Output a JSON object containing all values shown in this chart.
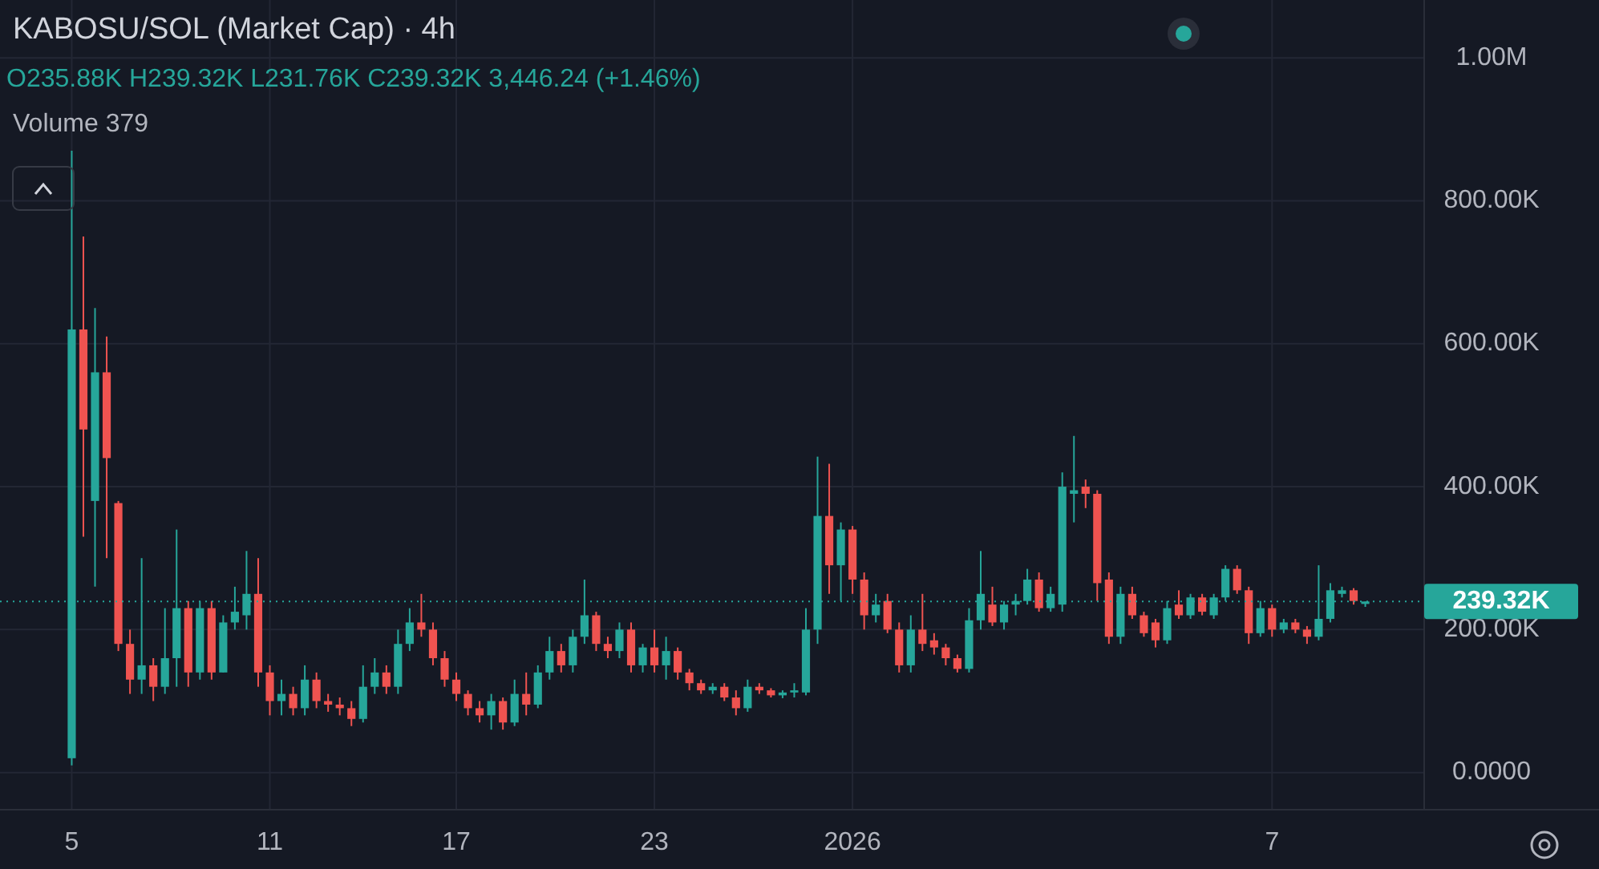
{
  "chart_data": {
    "type": "candlestick",
    "title": "KABOSU/SOL (Market Cap) · 4h",
    "annotations": [
      "O235.88K H239.32K L231.76K C239.32K 3,446.24 (+1.46%)",
      "Volume 379"
    ],
    "categories": [
      "5",
      null,
      null,
      null,
      null,
      null,
      null,
      null,
      null,
      null,
      null,
      null,
      null,
      null,
      null,
      null,
      null,
      "11",
      null,
      null,
      null,
      null,
      null,
      null,
      null,
      null,
      null,
      null,
      null,
      null,
      null,
      null,
      null,
      "17",
      null,
      null,
      null,
      null,
      null,
      null,
      null,
      null,
      null,
      null,
      null,
      null,
      null,
      null,
      null,
      null,
      "23",
      null,
      null,
      null,
      null,
      null,
      null,
      null,
      null,
      null,
      null,
      null,
      null,
      null,
      null,
      null,
      null,
      "2026",
      null,
      null,
      null,
      null,
      null,
      null,
      null,
      null,
      null,
      null,
      null,
      null,
      null,
      null,
      null,
      null,
      null,
      null,
      null,
      null,
      null,
      null,
      null,
      null,
      null,
      null,
      null,
      null,
      null,
      null,
      null,
      null,
      null,
      null,
      null,
      "7",
      null,
      null,
      null,
      null,
      null,
      null,
      null,
      null
    ],
    "ohlc": [
      [
        20000,
        870000,
        10000,
        620000
      ],
      [
        620000,
        750000,
        330000,
        480000
      ],
      [
        380000,
        650000,
        260000,
        560000
      ],
      [
        560000,
        610000,
        300000,
        440000
      ],
      [
        377000,
        380000,
        170000,
        180000
      ],
      [
        180000,
        200000,
        110000,
        130000
      ],
      [
        130000,
        300000,
        110000,
        150000
      ],
      [
        150000,
        160000,
        100000,
        120000
      ],
      [
        120000,
        230000,
        110000,
        160000
      ],
      [
        160000,
        340000,
        120000,
        230000
      ],
      [
        230000,
        240000,
        120000,
        140000
      ],
      [
        140000,
        240000,
        130000,
        230000
      ],
      [
        230000,
        240000,
        130000,
        140000
      ],
      [
        140000,
        220000,
        140000,
        210000
      ],
      [
        210000,
        260000,
        200000,
        225000
      ],
      [
        220000,
        310000,
        200000,
        250000
      ],
      [
        250000,
        300000,
        120000,
        140000
      ],
      [
        140000,
        150000,
        80000,
        100000
      ],
      [
        100000,
        130000,
        80000,
        110000
      ],
      [
        110000,
        120000,
        80000,
        90000
      ],
      [
        90000,
        150000,
        80000,
        130000
      ],
      [
        130000,
        140000,
        90000,
        100000
      ],
      [
        100000,
        110000,
        85000,
        95000
      ],
      [
        95000,
        105000,
        80000,
        90000
      ],
      [
        90000,
        100000,
        65000,
        75000
      ],
      [
        75000,
        150000,
        70000,
        120000
      ],
      [
        120000,
        160000,
        110000,
        140000
      ],
      [
        140000,
        150000,
        110000,
        120000
      ],
      [
        120000,
        200000,
        110000,
        180000
      ],
      [
        180000,
        230000,
        170000,
        210000
      ],
      [
        210000,
        250000,
        190000,
        200000
      ],
      [
        200000,
        210000,
        150000,
        160000
      ],
      [
        160000,
        170000,
        120000,
        130000
      ],
      [
        130000,
        140000,
        100000,
        110000
      ],
      [
        110000,
        115000,
        80000,
        90000
      ],
      [
        90000,
        100000,
        70000,
        80000
      ],
      [
        80000,
        110000,
        60000,
        100000
      ],
      [
        100000,
        105000,
        60000,
        70000
      ],
      [
        70000,
        130000,
        65000,
        110000
      ],
      [
        110000,
        140000,
        80000,
        95000
      ],
      [
        95000,
        150000,
        90000,
        140000
      ],
      [
        140000,
        190000,
        130000,
        170000
      ],
      [
        170000,
        180000,
        140000,
        150000
      ],
      [
        150000,
        200000,
        140000,
        190000
      ],
      [
        190000,
        270000,
        180000,
        220000
      ],
      [
        220000,
        225000,
        170000,
        180000
      ],
      [
        180000,
        190000,
        160000,
        170000
      ],
      [
        170000,
        210000,
        160000,
        200000
      ],
      [
        200000,
        210000,
        140000,
        150000
      ],
      [
        150000,
        180000,
        140000,
        175000
      ],
      [
        175000,
        200000,
        140000,
        150000
      ],
      [
        150000,
        190000,
        130000,
        170000
      ],
      [
        170000,
        175000,
        130000,
        140000
      ],
      [
        140000,
        145000,
        115000,
        125000
      ],
      [
        125000,
        130000,
        110000,
        115000
      ],
      [
        115000,
        125000,
        110000,
        120000
      ],
      [
        120000,
        125000,
        100000,
        105000
      ],
      [
        105000,
        115000,
        80000,
        90000
      ],
      [
        90000,
        130000,
        85000,
        120000
      ],
      [
        120000,
        125000,
        110000,
        115000
      ],
      [
        115000,
        118000,
        105000,
        108000
      ],
      [
        108000,
        115000,
        104000,
        112000
      ],
      [
        112000,
        125000,
        105000,
        115000
      ],
      [
        112000,
        230000,
        108000,
        200000
      ],
      [
        200000,
        442000,
        180000,
        359000
      ],
      [
        359000,
        432000,
        250000,
        290000
      ],
      [
        290000,
        350000,
        240000,
        340000
      ],
      [
        340000,
        345000,
        250000,
        270000
      ],
      [
        270000,
        280000,
        200000,
        220000
      ],
      [
        220000,
        250000,
        210000,
        235000
      ],
      [
        240000,
        250000,
        195000,
        200000
      ],
      [
        200000,
        210000,
        140000,
        150000
      ],
      [
        150000,
        220000,
        140000,
        200000
      ],
      [
        200000,
        250000,
        170000,
        180000
      ],
      [
        185000,
        195000,
        165000,
        175000
      ],
      [
        175000,
        180000,
        150000,
        160000
      ],
      [
        160000,
        165000,
        140000,
        145000
      ],
      [
        145000,
        230000,
        140000,
        213000
      ],
      [
        213000,
        310000,
        200000,
        250000
      ],
      [
        235000,
        260000,
        205000,
        210000
      ],
      [
        210000,
        240000,
        200000,
        235000
      ],
      [
        235000,
        250000,
        220000,
        240000
      ],
      [
        240000,
        285000,
        235000,
        270000
      ],
      [
        270000,
        280000,
        225000,
        230000
      ],
      [
        230000,
        260000,
        225000,
        250000
      ],
      [
        235000,
        420000,
        225000,
        400000
      ],
      [
        390000,
        471000,
        350000,
        395000
      ],
      [
        400000,
        410000,
        370000,
        390000
      ],
      [
        390000,
        395000,
        240000,
        265000
      ],
      [
        270000,
        280000,
        180000,
        190000
      ],
      [
        190000,
        260000,
        180000,
        250000
      ],
      [
        250000,
        260000,
        215000,
        220000
      ],
      [
        220000,
        225000,
        190000,
        195000
      ],
      [
        210000,
        215000,
        175000,
        185000
      ],
      [
        185000,
        240000,
        180000,
        230000
      ],
      [
        235000,
        255000,
        215000,
        220000
      ],
      [
        220000,
        250000,
        215000,
        245000
      ],
      [
        245000,
        250000,
        220000,
        225000
      ],
      [
        220000,
        250000,
        215000,
        245000
      ],
      [
        245000,
        290000,
        240000,
        285000
      ],
      [
        285000,
        290000,
        250000,
        255000
      ],
      [
        255000,
        260000,
        180000,
        195000
      ],
      [
        195000,
        240000,
        190000,
        230000
      ],
      [
        230000,
        235000,
        190000,
        200000
      ],
      [
        200000,
        215000,
        195000,
        210000
      ],
      [
        210000,
        215000,
        195000,
        200000
      ],
      [
        200000,
        205000,
        180000,
        190000
      ],
      [
        190000,
        290000,
        185000,
        215000
      ],
      [
        215000,
        265000,
        210000,
        255000
      ],
      [
        250000,
        260000,
        245000,
        255000
      ],
      [
        255000,
        258000,
        235000,
        240000
      ],
      [
        235880,
        239320,
        231760,
        239320
      ]
    ],
    "ylim": [
      -52000,
      1081000
    ],
    "yticks": [
      {
        "value": 0,
        "label": "0.0000"
      },
      {
        "value": 200000,
        "label": "200.00K"
      },
      {
        "value": 400000,
        "label": "400.00K"
      },
      {
        "value": 600000,
        "label": "600.00K"
      },
      {
        "value": 800000,
        "label": "800.00K"
      },
      {
        "value": 1000000,
        "label": "1.00M"
      }
    ],
    "ref_lines": [
      {
        "axis": "y",
        "value": 239320,
        "label": "239.32K",
        "color": "#26a69a",
        "line_style": "dotted"
      }
    ],
    "grid": true
  }
}
